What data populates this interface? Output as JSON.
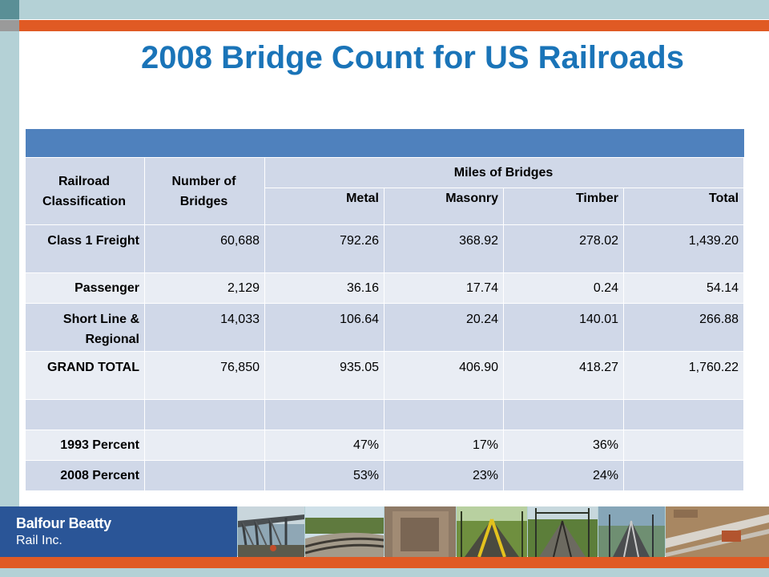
{
  "title": "2008 Bridge Count for US Railroads",
  "table": {
    "col_railroad": "Railroad Classification",
    "col_number": "Number of Bridges",
    "col_miles_group": "Miles of Bridges",
    "col_metal": "Metal",
    "col_masonry": "Masonry",
    "col_timber": "Timber",
    "col_total": "Total",
    "rows": [
      {
        "label": "Class 1 Freight",
        "number": "60,688",
        "metal": "792.26",
        "masonry": "368.92",
        "timber": "278.02",
        "total": "1,439.20"
      },
      {
        "label": "Passenger",
        "number": "2,129",
        "metal": "36.16",
        "masonry": "17.74",
        "timber": "0.24",
        "total": "54.14"
      },
      {
        "label": "Short Line & Regional",
        "number": "14,033",
        "metal": "106.64",
        "masonry": "20.24",
        "timber": "140.01",
        "total": "266.88"
      },
      {
        "label": "GRAND TOTAL",
        "number": "76,850",
        "metal": "935.05",
        "masonry": "406.90",
        "timber": "418.27",
        "total": "1,760.22"
      }
    ],
    "pct_rows": [
      {
        "label": "1993 Percent",
        "metal": "47%",
        "masonry": "17%",
        "timber": "36%"
      },
      {
        "label": "2008 Percent",
        "metal": "53%",
        "masonry": "23%",
        "timber": "24%"
      }
    ]
  },
  "footer": {
    "logo_name": "Balfour Beatty",
    "logo_sub": "Rail Inc."
  },
  "colors": {
    "title": "#1a74b8",
    "accent_orange": "#e05a24",
    "frame_teal": "#b4d1d6",
    "banner_blue": "#4f81bd",
    "logo_blue": "#2a5597"
  }
}
